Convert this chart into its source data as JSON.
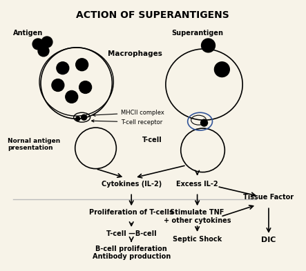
{
  "title": "ACTION OF SUPERANTIGENS",
  "bg_color": "#f7f3e8",
  "title_fontsize": 10,
  "label_antigen": "Antigen",
  "label_superantigen": "Superantigen",
  "label_macrophages": "Macrophages",
  "label_normal": "Nornal antigen\npresentation",
  "label_tcell": "T-cell",
  "label_mhcii": "MHCII complex",
  "label_tcell_receptor": "T-cell receptor",
  "label_cytokines": "Cytokines (IL-2)",
  "label_excess_il2": "Excess IL-2",
  "label_prolif": "Proliferation of T-cells",
  "label_tcell_bcell": "T-cell —B-cell",
  "label_bcell_prolif": "B-cell proliferation\nAntibody production",
  "label_stimulate": "Stimulate TNF\n+ other cytokines",
  "label_septic": "Septic Shock",
  "label_tissue": "Tissue Factor",
  "label_dic": "DIC"
}
